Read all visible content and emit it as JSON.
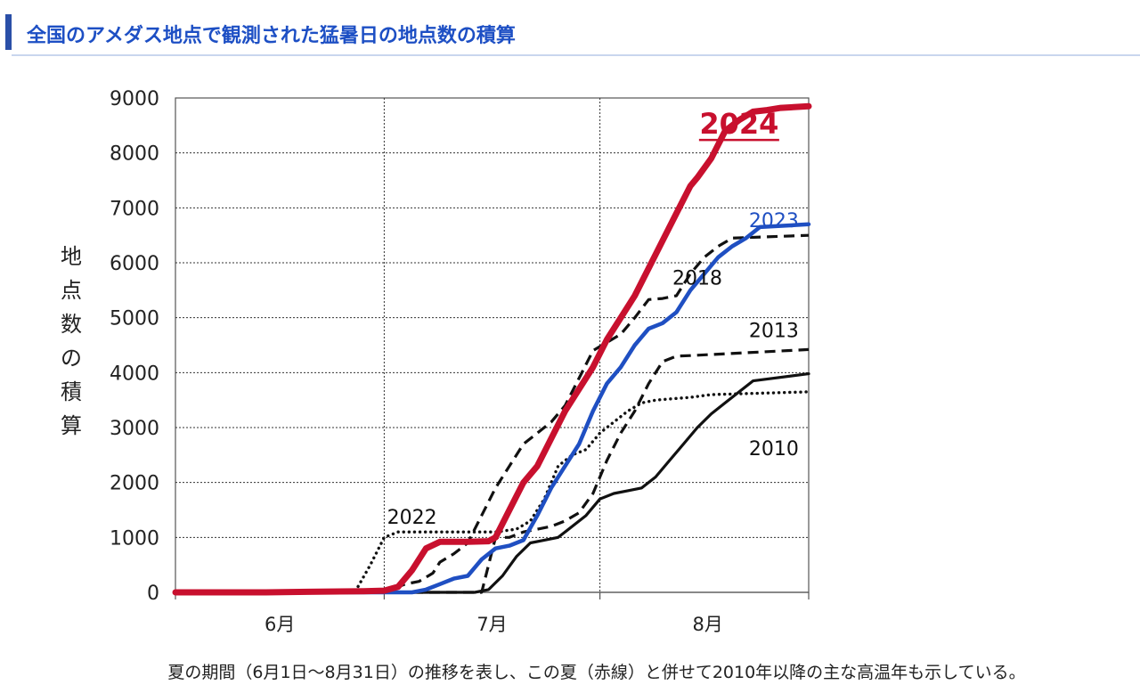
{
  "header": {
    "title": "全国のアメダス地点で観測された猛暑日の地点数の積算",
    "accent_color": "#1d4fc4"
  },
  "caption": "夏の期間（6月1日〜8月31日）の推移を表し、この夏（赤線）と併せて2010年以降の主な高温年も示している。",
  "chart_data": {
    "type": "line",
    "ylabel": "地点数の積算",
    "ylim": [
      0,
      9000
    ],
    "yticks": [
      "0",
      "1000",
      "2000",
      "3000",
      "4000",
      "5000",
      "6000",
      "7000",
      "8000",
      "9000"
    ],
    "xlim": [
      1,
      92
    ],
    "month_labels": [
      {
        "label": "6月",
        "x": 16
      },
      {
        "label": "7月",
        "x": 46.5
      },
      {
        "label": "8月",
        "x": 77.5
      }
    ],
    "month_boundaries": [
      31,
      62
    ],
    "grid": true,
    "series": [
      {
        "name": "2024",
        "color": "#c8102e",
        "style": "solid",
        "weight": "bold",
        "points": [
          [
            1,
            0
          ],
          [
            14,
            0
          ],
          [
            20,
            10
          ],
          [
            28,
            20
          ],
          [
            31,
            30
          ],
          [
            33,
            100
          ],
          [
            35,
            400
          ],
          [
            37,
            800
          ],
          [
            39,
            920
          ],
          [
            43,
            920
          ],
          [
            46,
            930
          ],
          [
            47,
            1000
          ],
          [
            49,
            1500
          ],
          [
            51,
            2000
          ],
          [
            53,
            2300
          ],
          [
            55,
            2800
          ],
          [
            57,
            3300
          ],
          [
            59,
            3700
          ],
          [
            61,
            4100
          ],
          [
            63,
            4600
          ],
          [
            65,
            5000
          ],
          [
            67,
            5400
          ],
          [
            69,
            5900
          ],
          [
            71,
            6400
          ],
          [
            73,
            6900
          ],
          [
            75,
            7400
          ],
          [
            76,
            7550
          ],
          [
            78,
            7900
          ],
          [
            80,
            8400
          ],
          [
            82,
            8600
          ],
          [
            84,
            8750
          ],
          [
            86,
            8780
          ],
          [
            88,
            8820
          ],
          [
            92,
            8850
          ]
        ]
      },
      {
        "name": "2023",
        "color": "#1f4fc2",
        "style": "solid",
        "weight": "normal",
        "points": [
          [
            1,
            0
          ],
          [
            35,
            0
          ],
          [
            37,
            50
          ],
          [
            39,
            150
          ],
          [
            41,
            250
          ],
          [
            43,
            300
          ],
          [
            45,
            600
          ],
          [
            47,
            800
          ],
          [
            49,
            850
          ],
          [
            51,
            950
          ],
          [
            53,
            1400
          ],
          [
            55,
            1900
          ],
          [
            57,
            2300
          ],
          [
            59,
            2700
          ],
          [
            61,
            3300
          ],
          [
            63,
            3800
          ],
          [
            65,
            4100
          ],
          [
            67,
            4500
          ],
          [
            69,
            4800
          ],
          [
            71,
            4900
          ],
          [
            73,
            5100
          ],
          [
            75,
            5500
          ],
          [
            77,
            5800
          ],
          [
            79,
            6100
          ],
          [
            81,
            6300
          ],
          [
            83,
            6450
          ],
          [
            85,
            6650
          ],
          [
            92,
            6700
          ]
        ]
      },
      {
        "name": "2018",
        "color": "#111111",
        "style": "dashed",
        "weight": "normal",
        "points": [
          [
            1,
            0
          ],
          [
            30,
            0
          ],
          [
            32,
            50
          ],
          [
            34,
            150
          ],
          [
            36,
            200
          ],
          [
            38,
            350
          ],
          [
            39,
            550
          ],
          [
            41,
            700
          ],
          [
            43,
            900
          ],
          [
            45,
            1400
          ],
          [
            47,
            1900
          ],
          [
            49,
            2300
          ],
          [
            51,
            2700
          ],
          [
            53,
            2900
          ],
          [
            55,
            3100
          ],
          [
            57,
            3400
          ],
          [
            59,
            3900
          ],
          [
            61,
            4400
          ],
          [
            63,
            4550
          ],
          [
            65,
            4700
          ],
          [
            67,
            5000
          ],
          [
            69,
            5330
          ],
          [
            71,
            5350
          ],
          [
            73,
            5400
          ],
          [
            75,
            5800
          ],
          [
            77,
            6100
          ],
          [
            79,
            6300
          ],
          [
            81,
            6450
          ],
          [
            92,
            6500
          ]
        ]
      },
      {
        "name": "2013",
        "color": "#111111",
        "style": "dashed",
        "weight": "normal",
        "points": [
          [
            1,
            0
          ],
          [
            45,
            0
          ],
          [
            47,
            1000
          ],
          [
            49,
            1000
          ],
          [
            51,
            1100
          ],
          [
            53,
            1150
          ],
          [
            55,
            1200
          ],
          [
            57,
            1300
          ],
          [
            59,
            1450
          ],
          [
            61,
            1800
          ],
          [
            63,
            2400
          ],
          [
            65,
            2900
          ],
          [
            67,
            3300
          ],
          [
            69,
            3800
          ],
          [
            71,
            4200
          ],
          [
            73,
            4300
          ],
          [
            75,
            4310
          ],
          [
            92,
            4420
          ]
        ]
      },
      {
        "name": "2022",
        "color": "#111111",
        "style": "dotted",
        "weight": "normal",
        "points": [
          [
            1,
            0
          ],
          [
            25,
            0
          ],
          [
            27,
            50
          ],
          [
            29,
            500
          ],
          [
            31,
            1000
          ],
          [
            33,
            1100
          ],
          [
            36,
            1100
          ],
          [
            46,
            1100
          ],
          [
            47,
            1100
          ],
          [
            50,
            1150
          ],
          [
            52,
            1300
          ],
          [
            54,
            1700
          ],
          [
            56,
            2300
          ],
          [
            58,
            2500
          ],
          [
            60,
            2600
          ],
          [
            62,
            2900
          ],
          [
            64,
            3100
          ],
          [
            66,
            3300
          ],
          [
            68,
            3450
          ],
          [
            70,
            3500
          ],
          [
            72,
            3520
          ],
          [
            75,
            3550
          ],
          [
            78,
            3600
          ],
          [
            92,
            3650
          ]
        ]
      },
      {
        "name": "2010",
        "color": "#111111",
        "style": "solid",
        "weight": "normal",
        "points": [
          [
            1,
            0
          ],
          [
            44,
            0
          ],
          [
            46,
            50
          ],
          [
            48,
            300
          ],
          [
            50,
            650
          ],
          [
            52,
            900
          ],
          [
            54,
            950
          ],
          [
            56,
            1000
          ],
          [
            58,
            1200
          ],
          [
            60,
            1400
          ],
          [
            62,
            1700
          ],
          [
            64,
            1800
          ],
          [
            66,
            1850
          ],
          [
            68,
            1900
          ],
          [
            70,
            2100
          ],
          [
            72,
            2400
          ],
          [
            74,
            2700
          ],
          [
            76,
            3000
          ],
          [
            78,
            3250
          ],
          [
            80,
            3450
          ],
          [
            82,
            3650
          ],
          [
            84,
            3850
          ],
          [
            92,
            3980
          ]
        ]
      }
    ],
    "labels": [
      {
        "text": "2024",
        "series": "2024",
        "x": 82,
        "y": 8350,
        "color": "#c8102e",
        "bold": true,
        "underline": true
      },
      {
        "text": "2023",
        "series": "2023",
        "x": 87,
        "y": 6650,
        "color": "#1f4fc2"
      },
      {
        "text": "2018",
        "series": "2018",
        "x": 76,
        "y": 5600,
        "color": "#111111"
      },
      {
        "text": "2013",
        "series": "2013",
        "x": 87,
        "y": 4650,
        "color": "#111111"
      },
      {
        "text": "2022",
        "series": "2022",
        "x": 35,
        "y": 1250,
        "color": "#111111"
      },
      {
        "text": "2010",
        "series": "2010",
        "x": 87,
        "y": 2500,
        "color": "#111111"
      }
    ]
  }
}
